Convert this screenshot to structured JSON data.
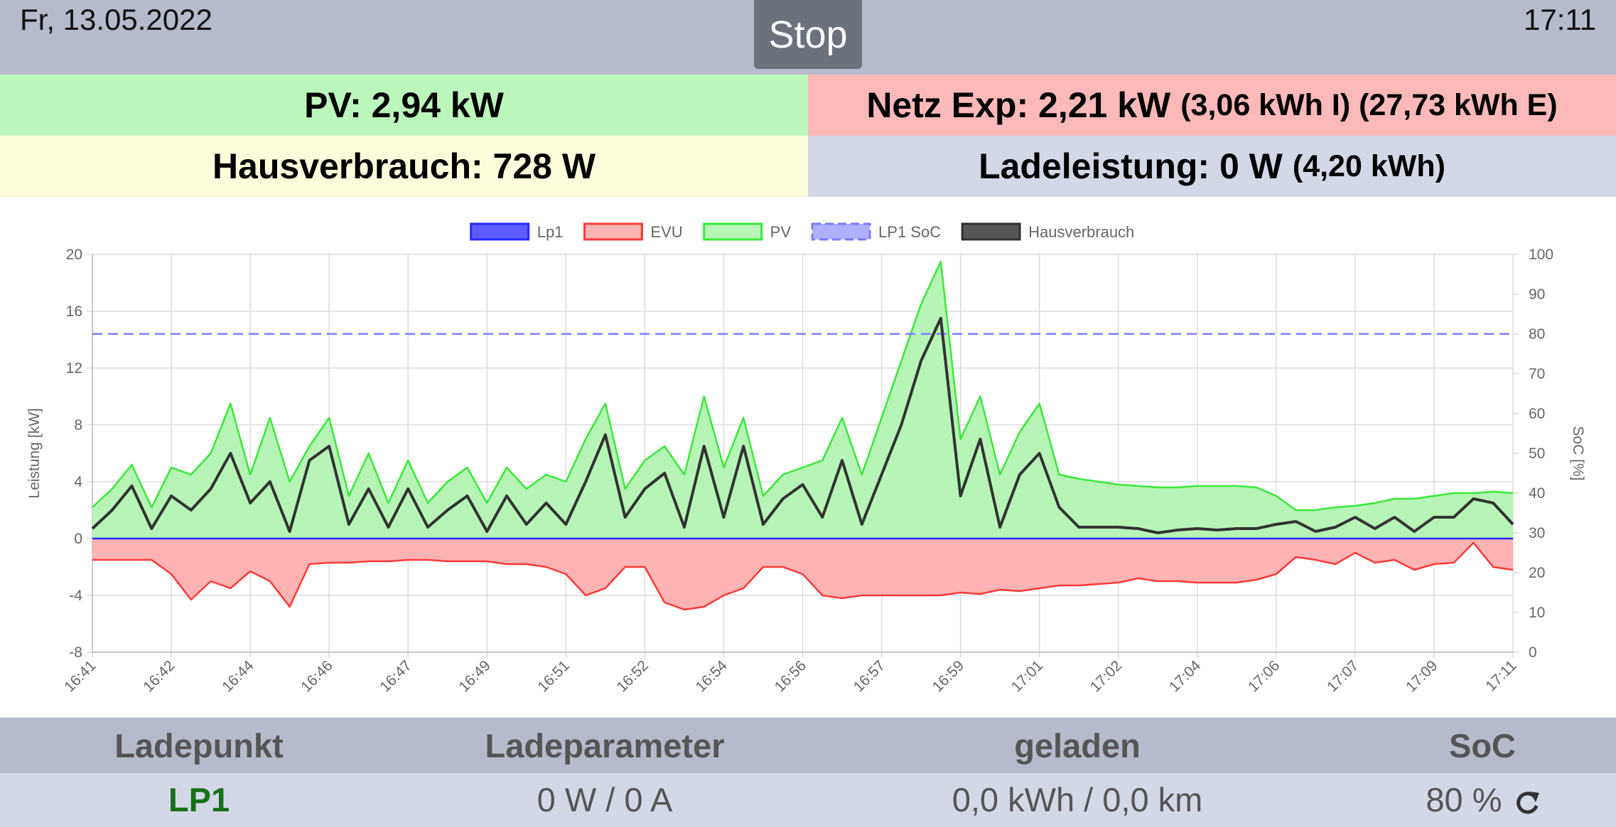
{
  "header": {
    "date": "Fr, 13.05.2022",
    "button": "Stop",
    "time": "17:11"
  },
  "summary": {
    "pv": "PV: 2,94 kW",
    "grid": "Netz Exp: 2,21 kW",
    "grid_detail": "(3,06 kWh I) (27,73 kWh E)",
    "house": "Hausverbrauch: 728 W",
    "charge": "Ladeleistung: 0 W",
    "charge_detail": "(4,20 kWh)"
  },
  "chart_data": {
    "type": "line",
    "y_label": "Leistung [kW]",
    "y2_label": "SoC [%]",
    "categories": [
      "16:41",
      null,
      null,
      null,
      "16:42",
      null,
      null,
      null,
      "16:44",
      null,
      null,
      null,
      "16:46",
      null,
      null,
      null,
      "16:47",
      null,
      null,
      null,
      "16:49",
      null,
      null,
      null,
      "16:51",
      null,
      null,
      null,
      "16:52",
      null,
      null,
      null,
      "16:54",
      null,
      null,
      null,
      "16:56",
      null,
      null,
      null,
      "16:57",
      null,
      null,
      null,
      "16:59",
      null,
      null,
      null,
      "17:01",
      null,
      null,
      null,
      "17:02",
      null,
      null,
      null,
      "17:04",
      null,
      null,
      null,
      "17:06",
      null,
      null,
      null,
      "17:07",
      null,
      null,
      null,
      "17:09",
      null,
      null,
      null,
      "17:11"
    ],
    "series": [
      {
        "name": "Lp1",
        "color": "#2a2aff",
        "legend_fill": "#4a4aff",
        "values": [
          0,
          0,
          0,
          0,
          0,
          0,
          0,
          0,
          0,
          0,
          0,
          0,
          0,
          0,
          0,
          0,
          0,
          0,
          0,
          0,
          0,
          0,
          0,
          0,
          0,
          0,
          0,
          0,
          0,
          0,
          0,
          0,
          0,
          0,
          0,
          0,
          0,
          0,
          0,
          0,
          0,
          0,
          0,
          0,
          0,
          0,
          0,
          0,
          0,
          0,
          0,
          0,
          0,
          0,
          0,
          0,
          0,
          0,
          0,
          0,
          0,
          0,
          0,
          0,
          0,
          0,
          0,
          0,
          0,
          0,
          0,
          0,
          0
        ]
      },
      {
        "name": "EVU",
        "color": "#ff3a3a",
        "fill": "#ffb3b3",
        "values": [
          -1.5,
          -1.5,
          -1.5,
          -1.5,
          -2.5,
          -4.3,
          -3.0,
          -3.5,
          -2.3,
          -3.0,
          -4.8,
          -1.8,
          -1.7,
          -1.7,
          -1.6,
          -1.6,
          -1.5,
          -1.5,
          -1.6,
          -1.6,
          -1.6,
          -1.8,
          -1.8,
          -2.0,
          -2.5,
          -4.0,
          -3.5,
          -2.0,
          -2.0,
          -4.5,
          -5.0,
          -4.8,
          -4.0,
          -3.5,
          -2.0,
          -2.0,
          -2.5,
          -4.0,
          -4.2,
          -4.0,
          -4.0,
          -4.0,
          -4.0,
          -4.0,
          -3.8,
          -3.9,
          -3.6,
          -3.7,
          -3.5,
          -3.3,
          -3.3,
          -3.2,
          -3.1,
          -2.8,
          -3.0,
          -3.0,
          -3.1,
          -3.1,
          -3.1,
          -2.9,
          -2.5,
          -1.3,
          -1.5,
          -1.8,
          -1.0,
          -1.7,
          -1.5,
          -2.2,
          -1.8,
          -1.7,
          -0.3,
          -2.0,
          -2.2
        ]
      },
      {
        "name": "PV",
        "color": "#3ae83a",
        "fill": "#b6f5b6",
        "values": [
          2.2,
          3.5,
          5.2,
          2.2,
          5.0,
          4.5,
          6.0,
          9.5,
          4.5,
          8.5,
          4.0,
          6.5,
          8.5,
          3.0,
          6.0,
          2.5,
          5.5,
          2.5,
          4.0,
          5.0,
          2.5,
          5.0,
          3.5,
          4.5,
          4.0,
          7.0,
          9.5,
          3.5,
          5.5,
          6.5,
          4.5,
          10.0,
          5.0,
          8.5,
          3.0,
          4.5,
          5.0,
          5.5,
          8.5,
          4.5,
          8.5,
          12.5,
          16.5,
          19.5,
          7.0,
          10.0,
          4.5,
          7.5,
          9.5,
          4.5,
          4.2,
          4.0,
          3.8,
          3.7,
          3.6,
          3.6,
          3.7,
          3.7,
          3.7,
          3.6,
          3.0,
          2.0,
          2.0,
          2.2,
          2.3,
          2.5,
          2.8,
          2.8,
          3.0,
          3.2,
          3.2,
          3.3,
          3.2
        ]
      },
      {
        "name": "LP1 SoC",
        "color": "#7b7bff",
        "dashed": true,
        "axis": "y2",
        "values": [
          80,
          80,
          80,
          80,
          80,
          80,
          80,
          80,
          80,
          80,
          80,
          80,
          80,
          80,
          80,
          80,
          80,
          80,
          80,
          80,
          80,
          80,
          80,
          80,
          80,
          80,
          80,
          80,
          80,
          80,
          80,
          80,
          80,
          80,
          80,
          80,
          80,
          80,
          80,
          80,
          80,
          80,
          80,
          80,
          80,
          80,
          80,
          80,
          80,
          80,
          80,
          80,
          80,
          80,
          80,
          80,
          80,
          80,
          80,
          80,
          80,
          80,
          80,
          80,
          80,
          80,
          80,
          80,
          80,
          80,
          80,
          80,
          80
        ]
      },
      {
        "name": "Hausverbrauch",
        "color": "#333333",
        "legend_fill": "#444444",
        "values": [
          0.7,
          2.0,
          3.7,
          0.7,
          3.0,
          2.0,
          3.5,
          6.0,
          2.5,
          4.0,
          0.5,
          5.5,
          6.5,
          1.0,
          3.5,
          0.8,
          3.5,
          0.8,
          2.0,
          3.0,
          0.5,
          3.0,
          1.0,
          2.5,
          1.0,
          4.0,
          7.3,
          1.5,
          3.5,
          4.6,
          0.8,
          6.5,
          1.5,
          6.5,
          1.0,
          2.8,
          3.8,
          1.5,
          5.5,
          1.0,
          4.5,
          8.0,
          12.5,
          15.5,
          3.0,
          7.0,
          0.8,
          4.5,
          6.0,
          2.2,
          0.8,
          0.8,
          0.8,
          0.7,
          0.4,
          0.6,
          0.7,
          0.6,
          0.7,
          0.7,
          1.0,
          1.2,
          0.5,
          0.8,
          1.5,
          0.7,
          1.5,
          0.5,
          1.5,
          1.5,
          2.8,
          2.5,
          1.0
        ]
      }
    ],
    "ylim": [
      -8,
      20
    ],
    "yticks": [
      -8,
      -4,
      0,
      4,
      8,
      12,
      16,
      20
    ],
    "y2lim": [
      0,
      100
    ],
    "y2ticks": [
      0,
      10,
      20,
      30,
      40,
      50,
      60,
      70,
      80,
      90,
      100
    ],
    "grid": true,
    "legend": "top"
  },
  "table": {
    "headers": [
      "Ladepunkt",
      "Ladeparameter",
      "geladen",
      "SoC"
    ],
    "rows": [
      [
        "LP1",
        "0 W / 0 A",
        "0,0 kWh / 0,0 km",
        "80 %"
      ]
    ]
  }
}
